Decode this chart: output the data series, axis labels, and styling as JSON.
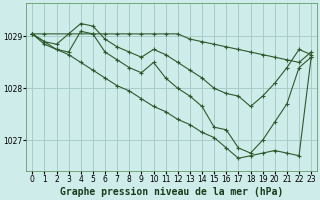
{
  "bg_color": "#ceecea",
  "grid_color": "#a8ceca",
  "line_color": "#2d5a2d",
  "title": "Graphe pression niveau de la mer (hPa)",
  "xlim": [
    -0.5,
    23.5
  ],
  "ylim": [
    1026.4,
    1029.65
  ],
  "yticks": [
    1027,
    1028,
    1029
  ],
  "xticks": [
    0,
    1,
    2,
    3,
    4,
    5,
    6,
    7,
    8,
    9,
    10,
    11,
    12,
    13,
    14,
    15,
    16,
    17,
    18,
    19,
    20,
    21,
    22,
    23
  ],
  "series": [
    {
      "x": [
        0,
        1,
        3,
        5,
        6,
        7,
        8,
        9,
        10,
        11,
        12,
        13,
        14,
        15,
        16,
        17,
        18,
        19,
        20,
        21,
        22,
        23
      ],
      "y": [
        1029.05,
        1029.05,
        1029.05,
        1029.05,
        1029.05,
        1029.05,
        1029.05,
        1029.05,
        1029.05,
        1029.05,
        1029.05,
        1028.95,
        1028.9,
        1028.85,
        1028.8,
        1028.75,
        1028.7,
        1028.65,
        1028.6,
        1028.55,
        1028.5,
        1028.7
      ]
    },
    {
      "x": [
        0,
        1,
        2,
        3,
        4,
        5,
        6,
        7,
        8,
        9,
        10,
        11,
        12,
        13,
        14,
        15,
        16,
        17,
        18,
        19,
        20,
        21,
        22,
        23
      ],
      "y": [
        1029.05,
        1028.9,
        1028.85,
        1029.05,
        1029.25,
        1029.2,
        1028.95,
        1028.8,
        1028.7,
        1028.6,
        1028.75,
        1028.65,
        1028.5,
        1028.35,
        1028.2,
        1028.0,
        1027.9,
        1027.85,
        1027.65,
        1027.85,
        1028.1,
        1028.4,
        1028.75,
        1028.65
      ]
    },
    {
      "x": [
        0,
        1,
        2,
        3,
        4,
        5,
        6,
        7,
        8,
        9,
        10,
        11,
        12,
        13,
        14,
        15,
        16,
        17,
        18,
        19,
        20,
        21,
        22,
        23
      ],
      "y": [
        1029.05,
        1028.9,
        1028.75,
        1028.7,
        1029.1,
        1029.05,
        1028.7,
        1028.55,
        1028.4,
        1028.3,
        1028.5,
        1028.2,
        1028.0,
        1027.85,
        1027.65,
        1027.25,
        1027.2,
        1026.85,
        1026.75,
        1027.0,
        1027.35,
        1027.7,
        1028.4,
        1028.6
      ]
    },
    {
      "x": [
        0,
        1,
        2,
        3,
        4,
        5,
        6,
        7,
        8,
        9,
        10,
        11,
        12,
        13,
        14,
        15,
        16,
        17,
        18,
        19,
        20,
        21,
        22,
        23
      ],
      "y": [
        1029.05,
        1028.85,
        1028.75,
        1028.65,
        1028.5,
        1028.35,
        1028.2,
        1028.05,
        1027.95,
        1027.8,
        1027.65,
        1027.55,
        1027.4,
        1027.3,
        1027.15,
        1027.05,
        1026.85,
        1026.65,
        1026.7,
        1026.75,
        1026.8,
        1026.75,
        1026.7,
        1028.6
      ]
    }
  ],
  "title_fontsize": 7,
  "tick_fontsize": 5.5
}
